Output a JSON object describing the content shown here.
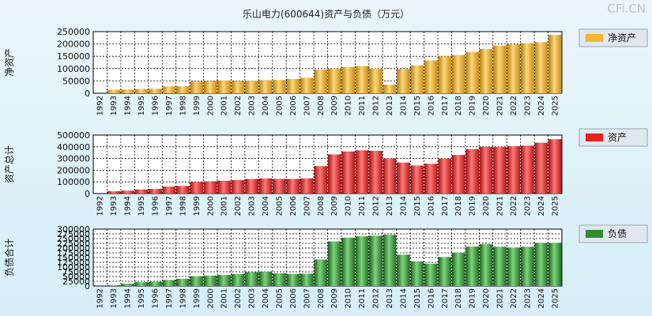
{
  "title": "乐山电力(600644)资产与负债（万元）",
  "watermark": "CFi.CN",
  "years": [
    "1992",
    "1993",
    "1994",
    "1995",
    "1996",
    "1997",
    "1998",
    "1999",
    "2000",
    "2001",
    "2002",
    "2003",
    "2004",
    "2005",
    "2006",
    "2007",
    "2008",
    "2009",
    "2010",
    "2011",
    "2012",
    "2013",
    "2014",
    "2015",
    "2016",
    "2017",
    "2018",
    "2019",
    "2020",
    "2021",
    "2022",
    "2023",
    "2024",
    "2025"
  ],
  "chart_data": [
    {
      "type": "bar",
      "ylabel": "净资产",
      "legend": "净资产",
      "color": "#f5b630",
      "ylim": [
        0,
        250000
      ],
      "yticks": [
        0,
        50000,
        100000,
        150000,
        200000,
        250000
      ],
      "ytick_labels": [
        "0",
        "50000",
        "100000",
        "150000",
        "200000",
        "250000"
      ],
      "values": [
        0,
        14000,
        15000,
        17000,
        18000,
        28000,
        28000,
        48000,
        50000,
        52000,
        50000,
        51000,
        53000,
        54000,
        58000,
        63000,
        95000,
        100000,
        107000,
        110000,
        100000,
        35000,
        98000,
        113000,
        133000,
        150000,
        155000,
        168000,
        180000,
        193000,
        199000,
        203000,
        207000,
        237000
      ]
    },
    {
      "type": "bar",
      "ylabel": "资产总计",
      "legend": "资产",
      "color": "#e82020",
      "ylim": [
        0,
        500000
      ],
      "yticks": [
        0,
        100000,
        200000,
        300000,
        400000,
        500000
      ],
      "ytick_labels": [
        "0",
        "100000",
        "200000",
        "300000",
        "400000",
        "500000"
      ],
      "values": [
        0,
        20000,
        25000,
        35000,
        40000,
        60000,
        65000,
        100000,
        105000,
        110000,
        115000,
        125000,
        130000,
        125000,
        125000,
        130000,
        235000,
        335000,
        360000,
        370000,
        365000,
        300000,
        265000,
        240000,
        255000,
        300000,
        330000,
        380000,
        400000,
        400000,
        405000,
        410000,
        435000,
        465000
      ]
    },
    {
      "type": "bar",
      "ylabel": "负债合计",
      "legend": "负债",
      "color": "#2e8b2e",
      "ylim": [
        0,
        300000
      ],
      "yticks": [
        0,
        25000,
        50000,
        75000,
        100000,
        125000,
        150000,
        175000,
        200000,
        225000,
        250000,
        275000,
        300000
      ],
      "ytick_labels": [
        "0",
        "25000",
        "50000",
        "75000",
        "100000",
        "125000",
        "150000",
        "175000",
        "200000",
        "225000",
        "250000",
        "275000",
        "300000"
      ],
      "values": [
        0,
        5000,
        12000,
        20000,
        22000,
        32000,
        38000,
        52000,
        55000,
        58000,
        63000,
        73000,
        75000,
        67000,
        63000,
        65000,
        140000,
        235000,
        255000,
        262000,
        265000,
        270000,
        165000,
        130000,
        118000,
        153000,
        175000,
        208000,
        220000,
        207000,
        203000,
        207000,
        228000,
        228000
      ]
    }
  ]
}
